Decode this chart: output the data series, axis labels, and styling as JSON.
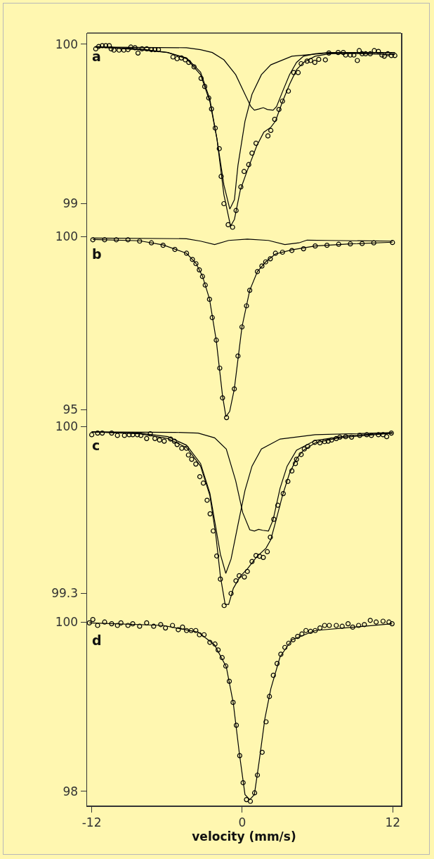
{
  "chart_data": [
    {
      "type": "scatter",
      "title": "a",
      "xlim": [
        -12.37,
        12.66
      ],
      "xticks": [
        -12,
        0,
        12
      ],
      "ylim": [
        98.83,
        100.07
      ],
      "yticks": [
        99,
        100
      ],
      "tick_labels": "y",
      "grid": false,
      "line_style": "solid",
      "series": [
        {
          "marker": "circle",
          "color": "#000000",
          "x": [
            -11.68,
            -11.44,
            -11.16,
            -10.88,
            -10.6,
            -10.45,
            -10.23,
            -9.82,
            -9.44,
            -9.11,
            -8.88,
            -8.55,
            -8.31,
            -7.99,
            -7.61,
            -7.24,
            -6.96,
            -6.68,
            -5.52,
            -5.19,
            -4.85,
            -4.54,
            -4.26,
            -3.84,
            -3.28,
            -2.99,
            -2.67,
            -2.45,
            -2.15,
            -1.83,
            -1.68,
            -1.46,
            -1.12,
            -0.77,
            -0.49,
            -0.11,
            0.15,
            0.52,
            0.78,
            1.1,
            2.05,
            2.28,
            2.59,
            2.93,
            3.21,
            3.68,
            4.11,
            4.46,
            4.7,
            5.17,
            5.45,
            5.79,
            6.1,
            6.63,
            6.91,
            7.65,
            8.06,
            8.25,
            8.62,
            8.9,
            9.18,
            9.33,
            9.56,
            9.84,
            10.21,
            10.53,
            10.86,
            11.14,
            11.33,
            11.61,
            11.89,
            12.17
          ],
          "values": [
            99.971,
            99.986,
            99.991,
            99.991,
            99.991,
            99.971,
            99.963,
            99.963,
            99.963,
            99.966,
            99.982,
            99.978,
            99.945,
            99.971,
            99.971,
            99.966,
            99.966,
            99.966,
            99.92,
            99.909,
            99.914,
            99.902,
            99.886,
            99.858,
            99.786,
            99.735,
            99.663,
            99.594,
            99.474,
            99.345,
            99.171,
            99.0,
            98.868,
            98.852,
            98.957,
            99.105,
            99.202,
            99.245,
            99.317,
            99.379,
            99.425,
            99.459,
            99.529,
            99.591,
            99.643,
            99.706,
            99.822,
            99.822,
            99.878,
            99.894,
            99.898,
            99.886,
            99.905,
            99.902,
            99.945,
            99.948,
            99.948,
            99.932,
            99.932,
            99.932,
            99.898,
            99.96,
            99.94,
            99.94,
            99.94,
            99.96,
            99.955,
            99.932,
            99.925,
            99.94,
            99.929,
            99.929
          ]
        },
        {
          "type": "line",
          "color": "#000000",
          "x": [
            -11.72,
            -8.18,
            -5.94,
            -4.44,
            -3.32,
            -2.58,
            -2.02,
            -1.46,
            -0.93,
            -0.62,
            -0.15,
            0.41,
            1.16,
            1.72,
            2.28,
            2.65,
            3.21,
            3.77,
            4.33,
            4.89,
            5.82,
            6.94,
            8.62,
            12.17
          ],
          "values": [
            99.982,
            99.966,
            99.948,
            99.909,
            99.809,
            99.64,
            99.409,
            99.056,
            98.859,
            98.902,
            99.086,
            99.209,
            99.363,
            99.448,
            99.479,
            99.517,
            99.64,
            99.748,
            99.84,
            99.886,
            99.925,
            99.94,
            99.943,
            99.935
          ]
        },
        {
          "type": "line",
          "color": "#000000",
          "x": [
            -11.72,
            -8.18,
            -5.94,
            -4.44,
            -3.32,
            -2.58,
            -2.02,
            -1.46,
            -0.99,
            -0.62,
            -0.34,
            0.22,
            0.78,
            1.53,
            2.28,
            3.96,
            6.76,
            12.17
          ],
          "values": [
            99.986,
            99.971,
            99.948,
            99.914,
            99.825,
            99.655,
            99.409,
            99.117,
            98.966,
            99.025,
            99.24,
            99.517,
            99.686,
            99.809,
            99.871,
            99.925,
            99.945,
            99.948
          ]
        },
        {
          "type": "line",
          "color": "#000000",
          "x": [
            -11.72,
            -4.44,
            -3.32,
            -2.39,
            -1.46,
            -0.52,
            0.22,
            0.69,
            0.97,
            1.34,
            1.68,
            2.0,
            2.46,
            2.74,
            3.21,
            3.77,
            4.33,
            4.89,
            5.82,
            6.94,
            12.17
          ],
          "values": [
            99.982,
            99.978,
            99.966,
            99.948,
            99.902,
            99.809,
            99.686,
            99.609,
            99.586,
            99.594,
            99.602,
            99.591,
            99.586,
            99.609,
            99.702,
            99.809,
            99.886,
            99.925,
            99.94,
            99.948,
            99.948
          ]
        }
      ]
    },
    {
      "type": "scatter",
      "title": "b",
      "xlim": [
        -12.37,
        12.66
      ],
      "xticks": [
        -12,
        0,
        12
      ],
      "ylim": [
        94.64,
        100.17
      ],
      "yticks": [
        95,
        100
      ],
      "tick_labels": "y",
      "grid": false,
      "line_style": "solid",
      "series": [
        {
          "marker": "circle",
          "color": "#000000",
          "x": [
            -11.91,
            -10.97,
            -10.04,
            -9.11,
            -8.18,
            -7.24,
            -6.31,
            -5.37,
            -4.44,
            -3.97,
            -3.69,
            -3.42,
            -3.17,
            -2.95,
            -2.61,
            -2.39,
            -2.07,
            -1.79,
            -1.57,
            -1.25,
            -0.63,
            -0.34,
            -0.02,
            0.34,
            0.6,
            1.21,
            1.57,
            1.87,
            2.24,
            2.65,
            3.21,
            3.96,
            4.89,
            5.82,
            6.76,
            7.69,
            8.62,
            9.56,
            10.49,
            11.98
          ],
          "values": [
            99.91,
            99.91,
            99.91,
            99.91,
            99.87,
            99.82,
            99.75,
            99.63,
            99.52,
            99.34,
            99.22,
            99.04,
            98.85,
            98.6,
            98.19,
            97.66,
            97.01,
            96.2,
            95.34,
            94.77,
            95.6,
            96.55,
            97.39,
            98.0,
            98.45,
            98.99,
            99.15,
            99.27,
            99.36,
            99.52,
            99.55,
            99.6,
            99.65,
            99.73,
            99.75,
            99.78,
            99.79,
            99.8,
            99.82,
            99.83
          ]
        },
        {
          "type": "line",
          "color": "#000000",
          "x": [
            -11.91,
            -8.18,
            -6.31,
            -4.44,
            -3.69,
            -3.17,
            -2.61,
            -2.07,
            -1.57,
            -1.3,
            -1.0,
            -0.63,
            -0.02,
            0.6,
            1.21,
            1.87,
            2.65,
            3.96,
            5.82,
            8.62,
            11.98
          ],
          "values": [
            99.92,
            99.88,
            99.76,
            99.52,
            99.23,
            98.86,
            98.2,
            97.0,
            95.4,
            94.8,
            94.95,
            95.6,
            97.39,
            98.45,
            98.99,
            99.27,
            99.5,
            99.62,
            99.73,
            99.79,
            99.84
          ]
        },
        {
          "type": "line",
          "color": "#000000",
          "x": [
            -11.91,
            -4.44,
            -3.32,
            -2.2,
            -1.08,
            0.41,
            2.09,
            3.4,
            4.52,
            5.17,
            6.76,
            11.98
          ],
          "values": [
            99.96,
            99.94,
            99.87,
            99.77,
            99.89,
            99.93,
            99.89,
            99.77,
            99.82,
            99.9,
            99.89,
            99.87
          ]
        }
      ]
    },
    {
      "type": "scatter",
      "title": "c",
      "xlim": [
        -12.37,
        12.66
      ],
      "xticks": [
        -12,
        0,
        12
      ],
      "ylim": [
        99.201,
        100.019
      ],
      "yticks": [
        99.3,
        100
      ],
      "tick_labels": "y",
      "grid": false,
      "line_style": "solid",
      "series": [
        {
          "marker": "circle",
          "color": "#000000",
          "x": [
            -12.0,
            -11.53,
            -11.16,
            -10.41,
            -9.95,
            -9.39,
            -9.01,
            -8.73,
            -8.36,
            -8.08,
            -7.62,
            -7.33,
            -6.96,
            -6.59,
            -6.22,
            -5.71,
            -5.41,
            -5.19,
            -4.82,
            -4.44,
            -4.29,
            -4.03,
            -3.7,
            -3.38,
            -3.1,
            -2.8,
            -2.56,
            -2.31,
            -2.03,
            -1.74,
            -1.44,
            -0.89,
            -0.5,
            -0.24,
            0.17,
            0.41,
            0.78,
            1.1,
            1.38,
            1.68,
            2.0,
            2.24,
            2.52,
            2.84,
            3.27,
            3.64,
            3.96,
            4.24,
            4.33,
            4.7,
            4.95,
            5.23,
            5.79,
            6.2,
            6.57,
            6.85,
            7.13,
            7.5,
            7.78,
            8.25,
            8.72,
            9.37,
            9.93,
            10.3,
            10.86,
            11.23,
            11.52,
            11.89
          ],
          "values": [
            99.966,
            99.973,
            99.973,
            99.973,
            99.963,
            99.963,
            99.966,
            99.966,
            99.966,
            99.963,
            99.95,
            99.97,
            99.95,
            99.944,
            99.939,
            99.948,
            99.939,
            99.925,
            99.909,
            99.909,
            99.881,
            99.863,
            99.843,
            99.79,
            99.763,
            99.691,
            99.634,
            99.562,
            99.457,
            99.36,
            99.249,
            99.3,
            99.353,
            99.374,
            99.369,
            99.392,
            99.434,
            99.459,
            99.456,
            99.451,
            99.475,
            99.536,
            99.611,
            99.67,
            99.719,
            99.77,
            99.814,
            99.845,
            99.863,
            99.883,
            99.906,
            99.917,
            99.934,
            99.932,
            99.937,
            99.939,
            99.944,
            99.95,
            99.956,
            99.958,
            99.956,
            99.963,
            99.966,
            99.963,
            99.966,
            99.966,
            99.958,
            99.973
          ]
        },
        {
          "type": "line",
          "color": "#000000",
          "x": [
            -12.0,
            -8.18,
            -5.93,
            -4.44,
            -3.32,
            -2.58,
            -2.11,
            -1.74,
            -1.36,
            -1.08,
            -0.71,
            -0.15,
            0.41,
            1.16,
            1.9,
            2.28,
            2.65,
            3.21,
            3.77,
            4.33,
            4.89,
            5.82,
            7.69,
            11.98
          ],
          "values": [
            99.978,
            99.97,
            99.95,
            99.912,
            99.834,
            99.711,
            99.547,
            99.372,
            99.254,
            99.254,
            99.321,
            99.372,
            99.403,
            99.454,
            99.49,
            99.526,
            99.598,
            99.711,
            99.804,
            99.865,
            99.901,
            99.932,
            99.953,
            99.973
          ]
        },
        {
          "type": "line",
          "color": "#000000",
          "x": [
            -12.0,
            -8.18,
            -5.93,
            -4.44,
            -3.32,
            -2.58,
            -2.11,
            -1.74,
            -1.31,
            -0.89,
            -0.34,
            0.22,
            0.78,
            1.53,
            3.02,
            5.82,
            11.98
          ],
          "values": [
            99.978,
            99.973,
            99.958,
            99.922,
            99.845,
            99.721,
            99.578,
            99.464,
            99.384,
            99.444,
            99.588,
            99.732,
            99.834,
            99.906,
            99.948,
            99.966,
            99.975
          ]
        },
        {
          "type": "line",
          "color": "#000000",
          "x": [
            -12.0,
            -5.37,
            -3.51,
            -2.2,
            -1.27,
            -0.52,
            0.04,
            0.6,
            0.97,
            1.31,
            1.62,
            2.09,
            2.46,
            3.02,
            3.58,
            4.33,
            5.82,
            8.62,
            11.98
          ],
          "values": [
            99.978,
            99.976,
            99.973,
            99.953,
            99.906,
            99.773,
            99.639,
            99.567,
            99.562,
            99.569,
            99.565,
            99.562,
            99.608,
            99.742,
            99.834,
            99.901,
            99.942,
            99.963,
            99.973
          ]
        }
      ]
    },
    {
      "type": "scatter",
      "title": "d",
      "xlabel": "velocity (mm/s)",
      "xlim": [
        -12.37,
        12.66
      ],
      "xticks": [
        -12,
        0,
        12
      ],
      "ylim": [
        97.83,
        100.06
      ],
      "yticks": [
        98,
        100
      ],
      "grid": false,
      "line_style": "solid",
      "series": [
        {
          "marker": "circle",
          "color": "#000000",
          "x": [
            -12.19,
            -11.91,
            -11.53,
            -10.97,
            -10.41,
            -9.95,
            -9.67,
            -9.11,
            -8.73,
            -8.18,
            -7.62,
            -7.06,
            -6.5,
            -6.12,
            -5.56,
            -5.1,
            -4.76,
            -4.44,
            -4.07,
            -3.7,
            -3.41,
            -3.04,
            -2.58,
            -2.17,
            -1.92,
            -1.6,
            -1.31,
            -1.03,
            -0.73,
            -0.47,
            -0.2,
            0.07,
            0.34,
            0.65,
            0.99,
            1.21,
            1.59,
            1.9,
            2.17,
            2.48,
            2.78,
            3.08,
            3.4,
            3.71,
            4.05,
            4.42,
            4.76,
            5.08,
            5.45,
            5.82,
            6.2,
            6.57,
            6.94,
            7.5,
            7.97,
            8.44,
            8.81,
            9.28,
            9.74,
            10.21,
            10.68,
            11.23,
            11.7,
            11.95
          ],
          "values": [
            99.99,
            100.03,
            99.96,
            100.0,
            99.98,
            99.96,
            99.99,
            99.96,
            99.98,
            99.95,
            99.99,
            99.95,
            99.97,
            99.93,
            99.96,
            99.91,
            99.94,
            99.9,
            99.9,
            99.9,
            99.85,
            99.85,
            99.76,
            99.74,
            99.67,
            99.58,
            99.48,
            99.3,
            99.05,
            98.78,
            98.42,
            98.1,
            97.9,
            97.88,
            97.98,
            98.19,
            98.46,
            98.82,
            99.12,
            99.37,
            99.51,
            99.62,
            99.7,
            99.75,
            99.79,
            99.83,
            99.86,
            99.9,
            99.89,
            99.9,
            99.93,
            99.96,
            99.96,
            99.96,
            99.95,
            99.98,
            99.94,
            99.96,
            99.97,
            100.02,
            100.0,
            100.01,
            100.0,
            99.98
          ]
        },
        {
          "type": "line",
          "color": "#000000",
          "x": [
            -12.19,
            -6.31,
            -3.51,
            -2.2,
            -1.27,
            -0.71,
            -0.24,
            0.22,
            0.6,
            0.97,
            1.34,
            1.81,
            2.28,
            3.02,
            3.96,
            5.82,
            11.95
          ],
          "values": [
            99.99,
            99.96,
            99.88,
            99.73,
            99.47,
            99.04,
            98.46,
            97.96,
            97.9,
            97.96,
            98.34,
            98.86,
            99.21,
            99.59,
            99.79,
            99.9,
            99.98
          ]
        }
      ]
    }
  ]
}
